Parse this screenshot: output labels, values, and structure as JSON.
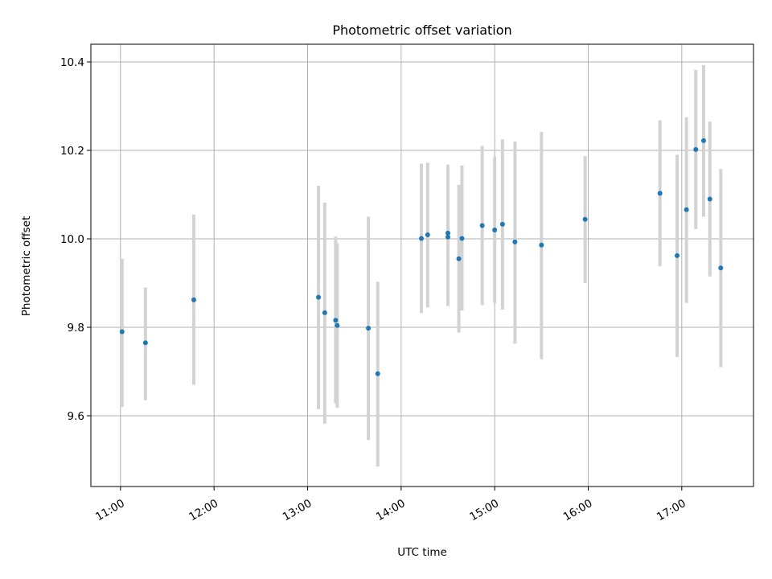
{
  "chart_data": {
    "type": "scatter",
    "title": "Photometric offset variation",
    "xlabel": "UTC time",
    "ylabel": "Photometric offset",
    "grid": true,
    "x_format": "HH:MM",
    "xlim": [
      "10:41",
      "17:46"
    ],
    "ylim": [
      9.44,
      10.44
    ],
    "x_ticks": [
      "11:00",
      "12:00",
      "13:00",
      "14:00",
      "15:00",
      "16:00",
      "17:00"
    ],
    "y_ticks": [
      9.6,
      9.8,
      10.0,
      10.2,
      10.4
    ],
    "y_tick_labels": [
      "9.6",
      "9.8",
      "10.0",
      "10.2",
      "10.4"
    ],
    "colors": {
      "marker": "#1f77b4",
      "errorbar": "#d3d3d3",
      "grid": "#b0b0b0"
    },
    "points": [
      {
        "x": "11:01",
        "y": 9.79,
        "ylo": 9.62,
        "yhi": 9.955
      },
      {
        "x": "11:16",
        "y": 9.765,
        "ylo": 9.635,
        "yhi": 9.89
      },
      {
        "x": "11:47",
        "y": 9.862,
        "ylo": 9.67,
        "yhi": 10.055
      },
      {
        "x": "13:07",
        "y": 9.868,
        "ylo": 9.615,
        "yhi": 10.12
      },
      {
        "x": "13:11",
        "y": 9.833,
        "ylo": 9.582,
        "yhi": 10.082
      },
      {
        "x": "13:18",
        "y": 9.816,
        "ylo": 9.628,
        "yhi": 10.005
      },
      {
        "x": "13:19",
        "y": 9.804,
        "ylo": 9.618,
        "yhi": 9.99
      },
      {
        "x": "13:39",
        "y": 9.798,
        "ylo": 9.545,
        "yhi": 10.05
      },
      {
        "x": "13:45",
        "y": 9.695,
        "ylo": 9.485,
        "yhi": 9.903
      },
      {
        "x": "14:13",
        "y": 10.001,
        "ylo": 9.832,
        "yhi": 10.17
      },
      {
        "x": "14:17",
        "y": 10.009,
        "ylo": 9.845,
        "yhi": 10.172
      },
      {
        "x": "14:30",
        "y": 10.013,
        "ylo": 9.848,
        "yhi": 10.168
      },
      {
        "x": "14:30",
        "y": 10.004,
        "ylo": 9.86,
        "yhi": 10.15
      },
      {
        "x": "14:37",
        "y": 9.955,
        "ylo": 9.788,
        "yhi": 10.122
      },
      {
        "x": "14:39",
        "y": 10.001,
        "ylo": 9.838,
        "yhi": 10.166
      },
      {
        "x": "14:52",
        "y": 10.03,
        "ylo": 9.85,
        "yhi": 10.21
      },
      {
        "x": "15:00",
        "y": 10.02,
        "ylo": 9.855,
        "yhi": 10.185
      },
      {
        "x": "15:05",
        "y": 10.033,
        "ylo": 9.84,
        "yhi": 10.225
      },
      {
        "x": "15:13",
        "y": 9.993,
        "ylo": 9.763,
        "yhi": 10.22
      },
      {
        "x": "15:30",
        "y": 9.986,
        "ylo": 9.728,
        "yhi": 10.242
      },
      {
        "x": "15:58",
        "y": 10.044,
        "ylo": 9.9,
        "yhi": 10.187
      },
      {
        "x": "16:46",
        "y": 10.103,
        "ylo": 9.938,
        "yhi": 10.268
      },
      {
        "x": "16:57",
        "y": 9.962,
        "ylo": 9.733,
        "yhi": 10.19
      },
      {
        "x": "17:03",
        "y": 10.066,
        "ylo": 9.855,
        "yhi": 10.275
      },
      {
        "x": "17:09",
        "y": 10.202,
        "ylo": 10.022,
        "yhi": 10.382
      },
      {
        "x": "17:14",
        "y": 10.222,
        "ylo": 10.05,
        "yhi": 10.393
      },
      {
        "x": "17:18",
        "y": 10.09,
        "ylo": 9.915,
        "yhi": 10.265
      },
      {
        "x": "17:25",
        "y": 9.934,
        "ylo": 9.71,
        "yhi": 10.158
      }
    ]
  }
}
